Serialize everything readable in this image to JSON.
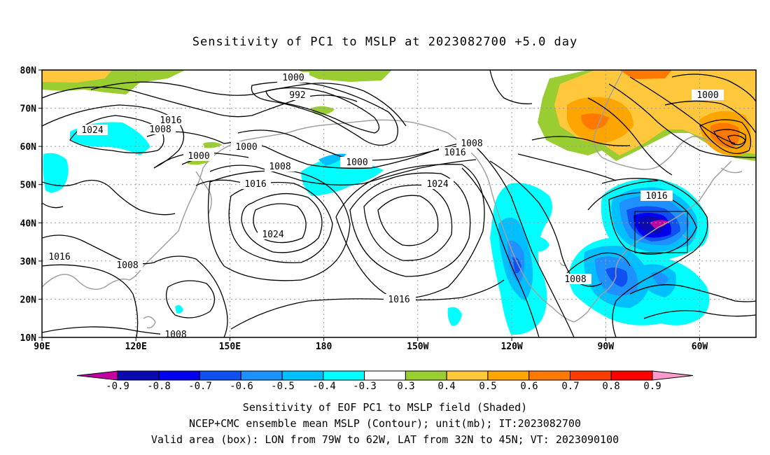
{
  "title": "Sensitivity of PC1 to MSLP at 2023082700 +5.0 day",
  "lat_labels": [
    "80N",
    "70N",
    "60N",
    "50N",
    "40N",
    "30N",
    "20N",
    "10N"
  ],
  "lon_labels": [
    "90E",
    "120E",
    "150E",
    "180",
    "150W",
    "120W",
    "90W",
    "60W"
  ],
  "contour_labels": [
    "1000",
    "992",
    "1016",
    "1008",
    "1024",
    "1000",
    "1000",
    "1008",
    "1016",
    "1008",
    "1000",
    "1016",
    "1024",
    "1024",
    "1016",
    "1008",
    "1016",
    "1008",
    "1016",
    "1000",
    "1008"
  ],
  "colorbar": {
    "labels": [
      "-0.9",
      "-0.8",
      "-0.7",
      "-0.6",
      "-0.5",
      "-0.4",
      "-0.3",
      "0.3",
      "0.4",
      "0.5",
      "0.6",
      "0.7",
      "0.8",
      "0.9"
    ],
    "colors": [
      "#c000a0",
      "#0a0ab0",
      "#0000ee",
      "#1050f0",
      "#1e90ff",
      "#00bfff",
      "#00ffff",
      "#ffffff",
      "#9acd32",
      "#ffc83c",
      "#ffa500",
      "#ff7800",
      "#ff3c00",
      "#ff0000",
      "#ff9acd"
    ]
  },
  "valid_box": {
    "lon_west": "79W",
    "lon_east": "62W",
    "lat_south": "32N",
    "lat_north": "45N"
  },
  "captions": [
    "Sensitivity of EOF PC1 to MSLP field (Shaded)",
    "NCEP+CMC ensemble mean MSLP (Contour); unit(mb); IT:2023082700",
    "Valid area (box): LON from 79W to 62W, LAT from 32N to 45N; VT: 2023090100"
  ]
}
